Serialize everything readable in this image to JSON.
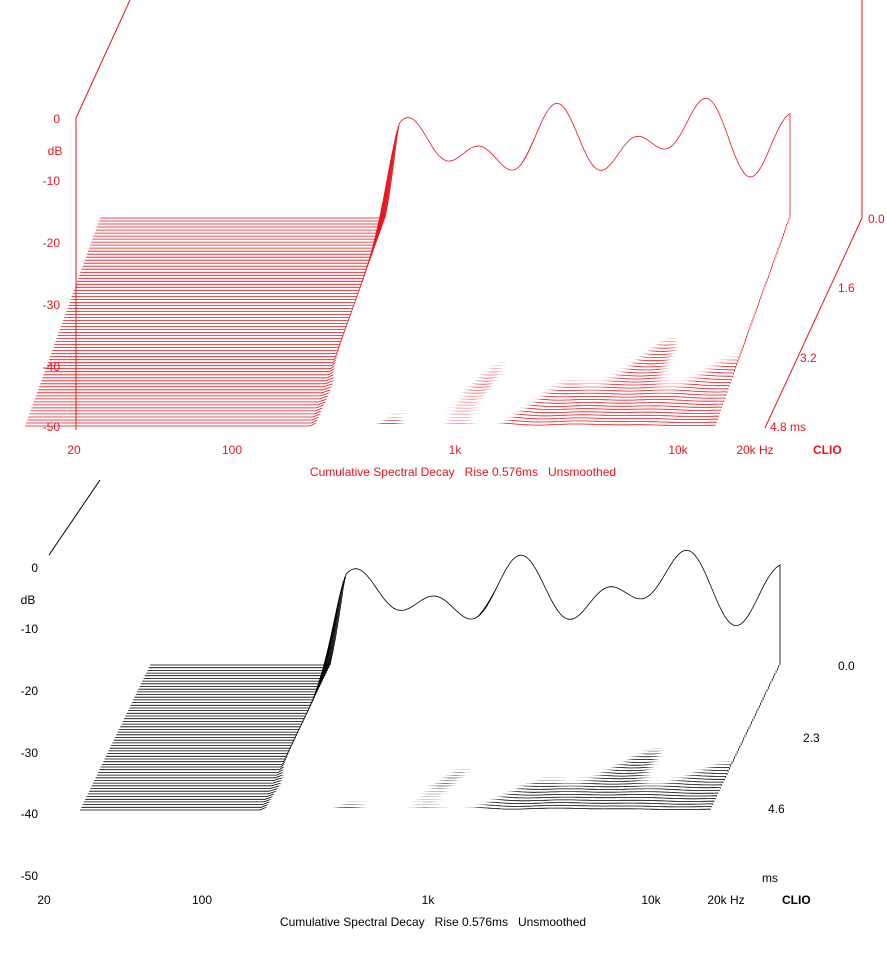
{
  "chart_data": [
    {
      "type": "waterfall",
      "color": "#e8141c",
      "title": "Cumulative Spectral Decay   Rise 0.576ms   Unsmoothed",
      "brand": "CLIO",
      "ylabel": "dB",
      "ylim": [
        -50,
        0
      ],
      "y_ticks": [
        "0",
        "-10",
        "-20",
        "-30",
        "-40",
        "-50"
      ],
      "x_scale": "log",
      "x_range_hz": [
        20,
        20000
      ],
      "x_tick_labels": [
        "20",
        "100",
        "1k",
        "10k",
        "20k Hz"
      ],
      "time_axis_unit": "ms",
      "time_ticks": [
        "0.0",
        "1.6",
        "3.2",
        "4.8 ms"
      ],
      "time_range_ms": [
        0,
        4.8
      ]
    },
    {
      "type": "waterfall",
      "color": "#000000",
      "title": "Cumulative Spectral Decay   Rise 0.576ms   Unsmoothed",
      "brand": "CLIO",
      "ylabel": "dB",
      "ylim": [
        -50,
        0
      ],
      "y_ticks": [
        "0",
        "-10",
        "-20",
        "-30",
        "-40",
        "-50"
      ],
      "x_scale": "log",
      "x_range_hz": [
        20,
        20000
      ],
      "x_tick_labels": [
        "20",
        "100",
        "1k",
        "10k",
        "20k Hz"
      ],
      "time_axis_unit": "ms",
      "time_ticks": [
        "0.0",
        "2.3",
        "4.6"
      ],
      "time_range_ms": [
        0,
        4.6
      ]
    }
  ]
}
